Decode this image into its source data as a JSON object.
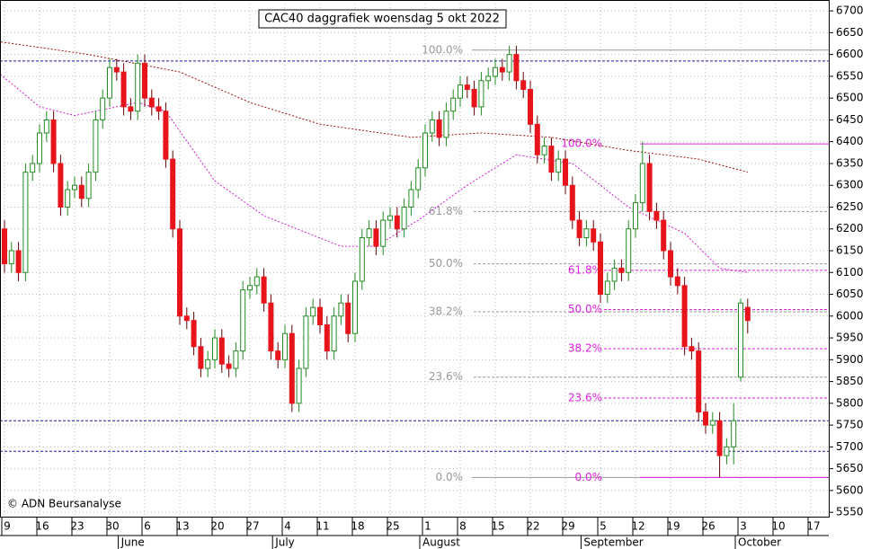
{
  "chart_data": {
    "type": "candlestick",
    "title": "CAC40 daggrafiek woensdag 5 okt 2022",
    "copyright": "© ADN Beursanalyse",
    "categories": [
      "9",
      null,
      null,
      null,
      null,
      "16",
      null,
      null,
      null,
      null,
      "23",
      null,
      null,
      null,
      null,
      "30",
      null,
      null,
      null,
      null,
      "6",
      null,
      null,
      null,
      null,
      "13",
      null,
      null,
      null,
      null,
      "20",
      null,
      null,
      null,
      null,
      "27",
      null,
      null,
      null,
      null,
      "4",
      null,
      null,
      null,
      null,
      "11",
      null,
      null,
      null,
      null,
      "18",
      null,
      null,
      null,
      null,
      "25",
      null,
      null,
      null,
      null,
      "1",
      null,
      null,
      null,
      null,
      "8",
      null,
      null,
      null,
      null,
      "15",
      null,
      null,
      null,
      null,
      "22",
      null,
      null,
      null,
      null,
      "29",
      null,
      null,
      null,
      null,
      "5",
      null,
      null,
      null,
      null,
      "12",
      null,
      null,
      null,
      null,
      "19",
      null,
      null,
      null,
      null,
      "26",
      null,
      null,
      null,
      null,
      "3",
      null,
      null,
      null,
      null,
      "10",
      null,
      null,
      null,
      null,
      "17"
    ],
    "month_categories": [
      null,
      null,
      null,
      null,
      null,
      null,
      null,
      null,
      null,
      null,
      null,
      null,
      null,
      null,
      null,
      null,
      null,
      "June",
      null,
      null,
      null,
      null,
      null,
      null,
      null,
      null,
      null,
      null,
      null,
      null,
      null,
      null,
      null,
      null,
      null,
      null,
      null,
      null,
      null,
      "July",
      null,
      null,
      null,
      null,
      null,
      null,
      null,
      null,
      null,
      null,
      null,
      null,
      null,
      null,
      null,
      null,
      null,
      null,
      null,
      null,
      "August",
      null,
      null,
      null,
      null,
      null,
      null,
      null,
      null,
      null,
      null,
      null,
      null,
      null,
      null,
      null,
      null,
      null,
      null,
      null,
      null,
      null,
      null,
      "September",
      null,
      null,
      null,
      null,
      null,
      null,
      null,
      null,
      null,
      null,
      null,
      null,
      null,
      null,
      null,
      null,
      null,
      null,
      null,
      null,
      null,
      "October",
      null,
      null,
      null,
      null,
      null,
      null,
      null,
      null,
      null,
      null
    ],
    "open": [
      6200,
      6120,
      6150,
      6100,
      6330,
      6350,
      6420,
      6450,
      6350,
      6250,
      6290,
      6300,
      6270,
      6330,
      6450,
      6500,
      6570,
      6560,
      6480,
      6470,
      6580,
      6500,
      6480,
      6470,
      6360,
      6200,
      6000,
      5990,
      5930,
      5880,
      5900,
      5950,
      5890,
      5880,
      5920,
      6060,
      6070,
      6090,
      6030,
      5920,
      5900,
      5960,
      5800,
      5880,
      6000,
      6020,
      5980,
      5920,
      6000,
      6030,
      5960,
      6080,
      6180,
      6200,
      6160,
      6220,
      6230,
      6200,
      6250,
      6290,
      6340,
      6420,
      6450,
      6410,
      6470,
      6500,
      6530,
      6520,
      6480,
      6540,
      6550,
      6570,
      6560,
      6600,
      6540,
      6520,
      6440,
      6370,
      6390,
      6330,
      6360,
      6300,
      6220,
      6180,
      6200,
      6170,
      6050,
      6080,
      6110,
      6100,
      6200,
      6260,
      6350,
      6240,
      6220,
      6150,
      6090,
      6070,
      5930,
      5920,
      5780,
      5750,
      5760,
      5680,
      5700,
      5860,
      6020,
      null,
      null,
      null,
      null,
      null,
      null,
      null,
      null,
      null
    ],
    "high": [
      6220,
      6170,
      6170,
      6350,
      6370,
      6440,
      6470,
      6470,
      6370,
      6310,
      6320,
      6320,
      6350,
      6470,
      6520,
      6590,
      6590,
      6580,
      6500,
      6600,
      6600,
      6520,
      6500,
      6490,
      6380,
      6220,
      6020,
      6010,
      5950,
      5920,
      5970,
      5970,
      5910,
      5940,
      6080,
      6090,
      6110,
      6110,
      6050,
      5940,
      5980,
      5980,
      5900,
      6020,
      6040,
      6040,
      6000,
      6020,
      6050,
      6050,
      6100,
      6200,
      6220,
      6220,
      6240,
      6250,
      6250,
      6270,
      6310,
      6360,
      6440,
      6470,
      6470,
      6490,
      6520,
      6550,
      6550,
      6540,
      6560,
      6570,
      6590,
      6590,
      6620,
      6620,
      6560,
      6540,
      6460,
      6410,
      6410,
      6380,
      6380,
      6320,
      6240,
      6220,
      6220,
      6190,
      6100,
      6130,
      6130,
      6220,
      6280,
      6400,
      6370,
      6260,
      6240,
      6170,
      6110,
      6090,
      5950,
      5940,
      5800,
      5780,
      5780,
      5720,
      5800,
      6040,
      6040,
      null,
      null,
      null,
      null,
      null,
      null,
      null,
      null,
      null
    ],
    "low": [
      6100,
      6100,
      6080,
      6080,
      6310,
      6330,
      6400,
      6330,
      6230,
      6230,
      6270,
      6250,
      6250,
      6310,
      6430,
      6480,
      6540,
      6460,
      6450,
      6450,
      6480,
      6460,
      6450,
      6340,
      6180,
      5980,
      5970,
      5910,
      5860,
      5860,
      5880,
      5870,
      5860,
      5860,
      5900,
      6040,
      6050,
      6010,
      5900,
      5880,
      5880,
      5780,
      5780,
      5860,
      5980,
      5960,
      5900,
      5900,
      5980,
      5940,
      5940,
      6060,
      6160,
      6140,
      6140,
      6200,
      6180,
      6180,
      6230,
      6270,
      6320,
      6400,
      6390,
      6390,
      6450,
      6480,
      6500,
      6460,
      6460,
      6520,
      6530,
      6540,
      6540,
      6520,
      6500,
      6420,
      6350,
      6350,
      6310,
      6310,
      6280,
      6200,
      6160,
      6160,
      6150,
      6030,
      6030,
      6060,
      6080,
      6080,
      6180,
      6240,
      6220,
      6200,
      6130,
      6070,
      6050,
      5910,
      5900,
      5760,
      5730,
      5730,
      5630,
      5660,
      5660,
      5850,
      5960,
      null,
      null,
      null,
      null,
      null,
      null,
      null,
      null,
      null
    ],
    "close": [
      6120,
      6150,
      6100,
      6330,
      6350,
      6420,
      6450,
      6350,
      6250,
      6290,
      6300,
      6270,
      6330,
      6450,
      6500,
      6570,
      6560,
      6480,
      6470,
      6580,
      6500,
      6480,
      6470,
      6360,
      6200,
      6000,
      5990,
      5930,
      5880,
      5900,
      5950,
      5890,
      5880,
      5920,
      6060,
      6070,
      6090,
      6030,
      5920,
      5900,
      5960,
      5800,
      5880,
      6000,
      6020,
      5980,
      5920,
      6000,
      6030,
      5960,
      6080,
      6180,
      6200,
      6160,
      6220,
      6230,
      6200,
      6250,
      6290,
      6340,
      6420,
      6450,
      6410,
      6470,
      6500,
      6530,
      6520,
      6480,
      6540,
      6550,
      6570,
      6560,
      6600,
      6540,
      6520,
      6440,
      6370,
      6390,
      6330,
      6360,
      6300,
      6220,
      6180,
      6200,
      6170,
      6050,
      6080,
      6110,
      6100,
      6200,
      6260,
      6350,
      6240,
      6220,
      6150,
      6090,
      6070,
      5930,
      5920,
      5780,
      5750,
      5760,
      5680,
      5700,
      5760,
      6030,
      5990,
      null,
      null,
      null,
      null,
      null,
      null,
      null,
      null,
      null
    ],
    "up_color": "#228b22",
    "down_color": "#e8141c",
    "moving_averages": [
      {
        "color": "#d020d0",
        "x": [
          -1,
          5,
          10,
          19,
          23,
          30,
          37,
          48,
          53,
          59,
          66,
          73,
          81,
          89,
          97,
          102,
          106
        ],
        "values": [
          6560,
          6480,
          6460,
          6490,
          6470,
          6310,
          6230,
          6160,
          6160,
          6220,
          6300,
          6370,
          6350,
          6250,
          6190,
          6110,
          6100
        ]
      },
      {
        "color": "#a01010",
        "x": [
          -1,
          12,
          25,
          35,
          45,
          58,
          68,
          78,
          89,
          99,
          106
        ],
        "values": [
          6630,
          6600,
          6560,
          6490,
          6440,
          6410,
          6420,
          6410,
          6380,
          6360,
          6330
        ]
      }
    ],
    "fib_left": {
      "color": "#999999",
      "levels": [
        6610,
        6240,
        6120,
        6010,
        5860,
        5630
      ],
      "labels": [
        "100.0%",
        "61.8%",
        "50.0%",
        "38.2%",
        "23.6%",
        "0.0%"
      ]
    },
    "fib_right": {
      "color": "#e020e0",
      "levels": [
        6395,
        6105,
        6015,
        5925,
        5812,
        5630
      ],
      "labels": [
        "100.0%",
        "61.8%",
        "50.0%",
        "38.2%",
        "23.6%",
        "0.0%"
      ]
    },
    "reference_lines": {
      "color": "#1a1aa0",
      "values": [
        6585,
        5760,
        5690
      ]
    },
    "ylim": [
      5540,
      6725
    ],
    "yticks": [
      5550,
      5600,
      5650,
      5700,
      5750,
      5800,
      5850,
      5900,
      5950,
      6000,
      6050,
      6100,
      6150,
      6200,
      6250,
      6300,
      6350,
      6400,
      6450,
      6500,
      6550,
      6600,
      6650,
      6700
    ],
    "grid": true
  }
}
